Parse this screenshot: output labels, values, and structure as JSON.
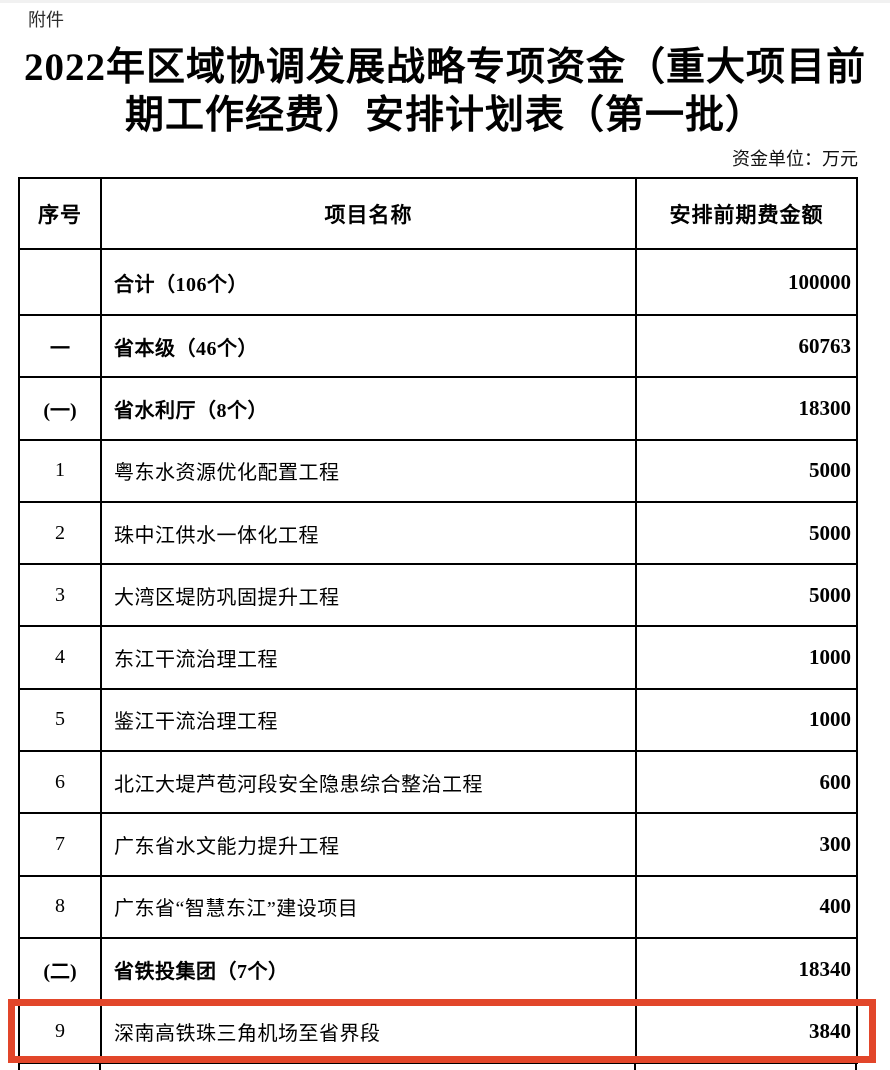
{
  "page": {
    "attachment_label": "附件",
    "title_line1": "2022年区域协调发展战略专项资金（重大项目前",
    "title_line2": "期工作经费）安排计划表（第一批）",
    "unit_note": "资金单位：万元"
  },
  "table": {
    "headers": {
      "no": "序号",
      "name": "项目名称",
      "amount": "安排前期费金额"
    },
    "rows": [
      {
        "no": "",
        "name": "合计（106个）",
        "amount": "100000",
        "bold": true,
        "highlighted": false
      },
      {
        "no": "一",
        "name": "省本级（46个）",
        "amount": "60763",
        "bold": true,
        "highlighted": false
      },
      {
        "no": "(一)",
        "name": "省水利厅（8个）",
        "amount": "18300",
        "bold": true,
        "highlighted": false
      },
      {
        "no": "1",
        "name": "粤东水资源优化配置工程",
        "amount": "5000",
        "bold": false,
        "highlighted": false
      },
      {
        "no": "2",
        "name": "珠中江供水一体化工程",
        "amount": "5000",
        "bold": false,
        "highlighted": false
      },
      {
        "no": "3",
        "name": "大湾区堤防巩固提升工程",
        "amount": "5000",
        "bold": false,
        "highlighted": false
      },
      {
        "no": "4",
        "name": "东江干流治理工程",
        "amount": "1000",
        "bold": false,
        "highlighted": false
      },
      {
        "no": "5",
        "name": "鉴江干流治理工程",
        "amount": "1000",
        "bold": false,
        "highlighted": false
      },
      {
        "no": "6",
        "name": "北江大堤芦苞河段安全隐患综合整治工程",
        "amount": "600",
        "bold": false,
        "highlighted": false
      },
      {
        "no": "7",
        "name": "广东省水文能力提升工程",
        "amount": "300",
        "bold": false,
        "highlighted": false
      },
      {
        "no": "8",
        "name": "广东省“智慧东江”建设项目",
        "amount": "400",
        "bold": false,
        "highlighted": false
      },
      {
        "no": "(二)",
        "name": "省铁投集团（7个）",
        "amount": "18340",
        "bold": true,
        "highlighted": false
      },
      {
        "no": "9",
        "name": "深南高铁珠三角机场至省界段",
        "amount": "3840",
        "bold": false,
        "highlighted": true
      }
    ],
    "highlight_color": "#e2462a"
  }
}
